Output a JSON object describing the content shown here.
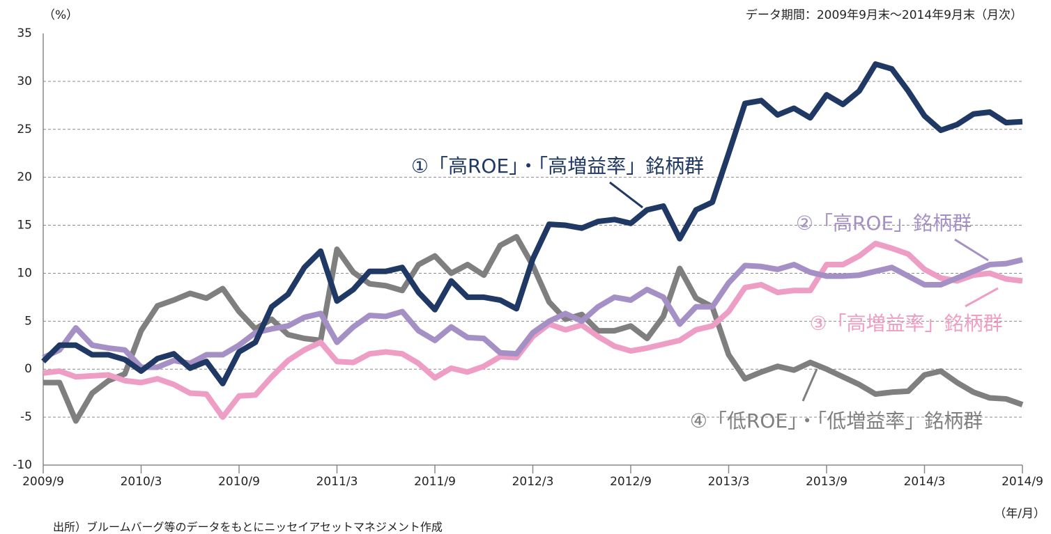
{
  "chart_data": {
    "type": "line",
    "y_label": "（%）",
    "subtitle": "データ期間：2009年9月末～2014年9月末（月次）",
    "x_label": "（年/月）",
    "source": "出所）ブルームバーグ等のデータをもとにニッセイアセットマネジメント作成",
    "categories": [
      "2009/9",
      null,
      null,
      null,
      null,
      null,
      "2010/3",
      null,
      null,
      null,
      null,
      null,
      "2010/9",
      null,
      null,
      null,
      null,
      null,
      "2011/3",
      null,
      null,
      null,
      null,
      null,
      "2011/9",
      null,
      null,
      null,
      null,
      null,
      "2012/3",
      null,
      null,
      null,
      null,
      null,
      "2012/9",
      null,
      null,
      null,
      null,
      null,
      "2013/3",
      null,
      null,
      null,
      null,
      null,
      "2013/9",
      null,
      null,
      null,
      null,
      null,
      "2014/3",
      null,
      null,
      null,
      null,
      null,
      "2014/9"
    ],
    "ylim": [
      -10,
      35
    ],
    "yticks": [
      -10,
      -5,
      0,
      5,
      10,
      15,
      20,
      25,
      30,
      35
    ],
    "grid": true,
    "series": [
      {
        "name": "④「低ROE」・「低増益率」銘柄群",
        "color": "#7f7f7f",
        "values": [
          -1.4,
          -1.4,
          -5.4,
          -2.5,
          -1.2,
          -0.5,
          4.0,
          6.6,
          7.2,
          7.9,
          7.4,
          8.4,
          6.0,
          4.2,
          5.2,
          3.6,
          3.2,
          3.0,
          12.5,
          10.1,
          8.9,
          8.7,
          8.2,
          10.9,
          11.8,
          10.0,
          10.9,
          9.8,
          12.9,
          13.8,
          10.8,
          7.0,
          5.2,
          5.7,
          4.0,
          4.0,
          4.5,
          3.2,
          5.5,
          10.5,
          7.4,
          6.5,
          1.5,
          -1.0,
          -0.3,
          0.3,
          -0.1,
          0.7,
          0,
          -0.8,
          -1.6,
          -2.6,
          -2.4,
          -2.3,
          -0.6,
          -0.2,
          -1.4,
          -2.4,
          -3.0,
          -3.1,
          -3.7
        ]
      },
      {
        "name": "③「高増益率」銘柄群",
        "color": "#ee9ec4",
        "values": [
          -0.4,
          -0.2,
          -0.8,
          -0.7,
          -0.6,
          -1.2,
          -1.4,
          -1.0,
          -1.6,
          -2.5,
          -2.6,
          -5.0,
          -2.8,
          -2.7,
          -0.8,
          0.9,
          2.0,
          2.8,
          0.8,
          0.7,
          1.6,
          1.8,
          1.6,
          0.6,
          -0.9,
          0.1,
          -0.3,
          0.3,
          1.3,
          1.2,
          3.4,
          4.7,
          4.1,
          4.6,
          3.4,
          2.4,
          1.9,
          2.2,
          2.6,
          3.0,
          4.1,
          4.5,
          6.0,
          8.5,
          8.8,
          8.0,
          8.2,
          8.2,
          10.9,
          10.9,
          11.8,
          13.1,
          12.6,
          12.0,
          10.4,
          9.5,
          9.2,
          9.8,
          10.0,
          9.4,
          9.2
        ]
      },
      {
        "name": "②「高ROE」銘柄群",
        "color": "#a590c6",
        "values": [
          1.2,
          2.0,
          4.3,
          2.5,
          2.2,
          2.0,
          0.2,
          0.2,
          0.9,
          0.6,
          1.5,
          1.5,
          2.5,
          3.8,
          4.2,
          4.5,
          5.4,
          5.8,
          2.8,
          4.4,
          5.6,
          5.5,
          6.0,
          4.0,
          3.0,
          4.4,
          3.3,
          3.2,
          1.7,
          1.6,
          3.8,
          5.0,
          5.8,
          5.0,
          6.5,
          7.5,
          7.2,
          8.3,
          7.5,
          4.7,
          6.5,
          6.5,
          9.0,
          10.8,
          10.7,
          10.4,
          10.9,
          10.1,
          9.7,
          9.7,
          9.8,
          10.2,
          10.6,
          9.7,
          8.8,
          8.8,
          9.5,
          10.2,
          10.9,
          11.0,
          11.4
        ]
      },
      {
        "name": "①「高ROE」・「高増益率」銘柄群",
        "color": "#1f3864",
        "values": [
          0.8,
          2.5,
          2.5,
          1.5,
          1.5,
          1.0,
          -0.2,
          1.1,
          1.6,
          0.1,
          0.8,
          -1.5,
          1.8,
          2.8,
          6.5,
          7.8,
          10.6,
          12.3,
          7.1,
          8.3,
          10.2,
          10.2,
          10.6,
          8.0,
          6.2,
          9.2,
          7.5,
          7.5,
          7.2,
          6.3,
          11.5,
          15.1,
          15.0,
          14.7,
          15.4,
          15.6,
          15.2,
          16.6,
          17.0,
          13.6,
          16.6,
          17.4,
          22.5,
          27.7,
          28.0,
          26.5,
          27.2,
          26.2,
          28.6,
          27.6,
          29.0,
          31.8,
          31.3,
          29.0,
          26.4,
          24.9,
          25.5,
          26.6,
          26.8,
          25.7,
          25.8
        ]
      }
    ]
  }
}
